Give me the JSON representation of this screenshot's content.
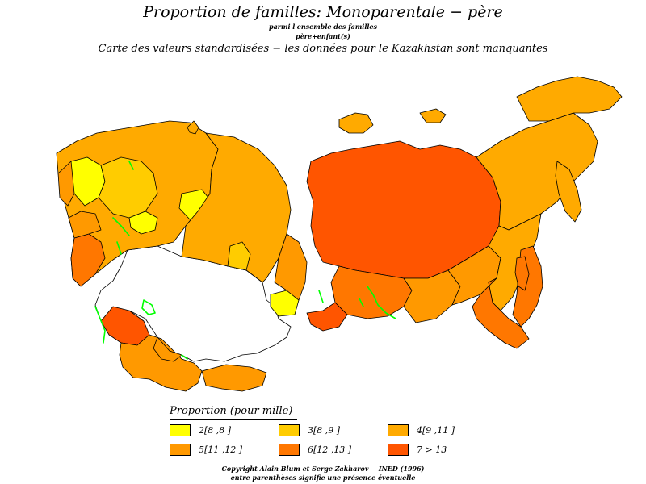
{
  "header": {
    "title": "Proportion  de  familles:  Monoparentale  −  père",
    "subtitle_1": "parmi  l'ensemble  des  familles",
    "subtitle_2": "père+enfant(s)",
    "caption": "Carte  des  valeurs  standardisées  −  les  données  pour  le  Kazakhstan  sont  manquantes"
  },
  "legend": {
    "title": "Proportion  (pour  mille)",
    "items": [
      {
        "label": "2[8 ,8  ]",
        "color": "#ffff00"
      },
      {
        "label": "3[8 ,9  ]",
        "color": "#ffcc00"
      },
      {
        "label": "4[9 ,11  ]",
        "color": "#ffaa00"
      },
      {
        "label": "5[11 ,12  ]",
        "color": "#ff9900"
      },
      {
        "label": "6[12 ,13  ]",
        "color": "#ff7700"
      },
      {
        "label": "7  >  13",
        "color": "#ff5500"
      }
    ]
  },
  "footer": {
    "copyright": "Copyright  Alain  Blum  et  Serge  Zakharov  −  INED  (1996)",
    "note": "entre  parenthèses  signifie  une  présence  éventuelle"
  },
  "map": {
    "background_color": "#ffffff",
    "border_color": "#000000",
    "water_color": "#00ff00",
    "missing_data_color": "#ffffff"
  }
}
